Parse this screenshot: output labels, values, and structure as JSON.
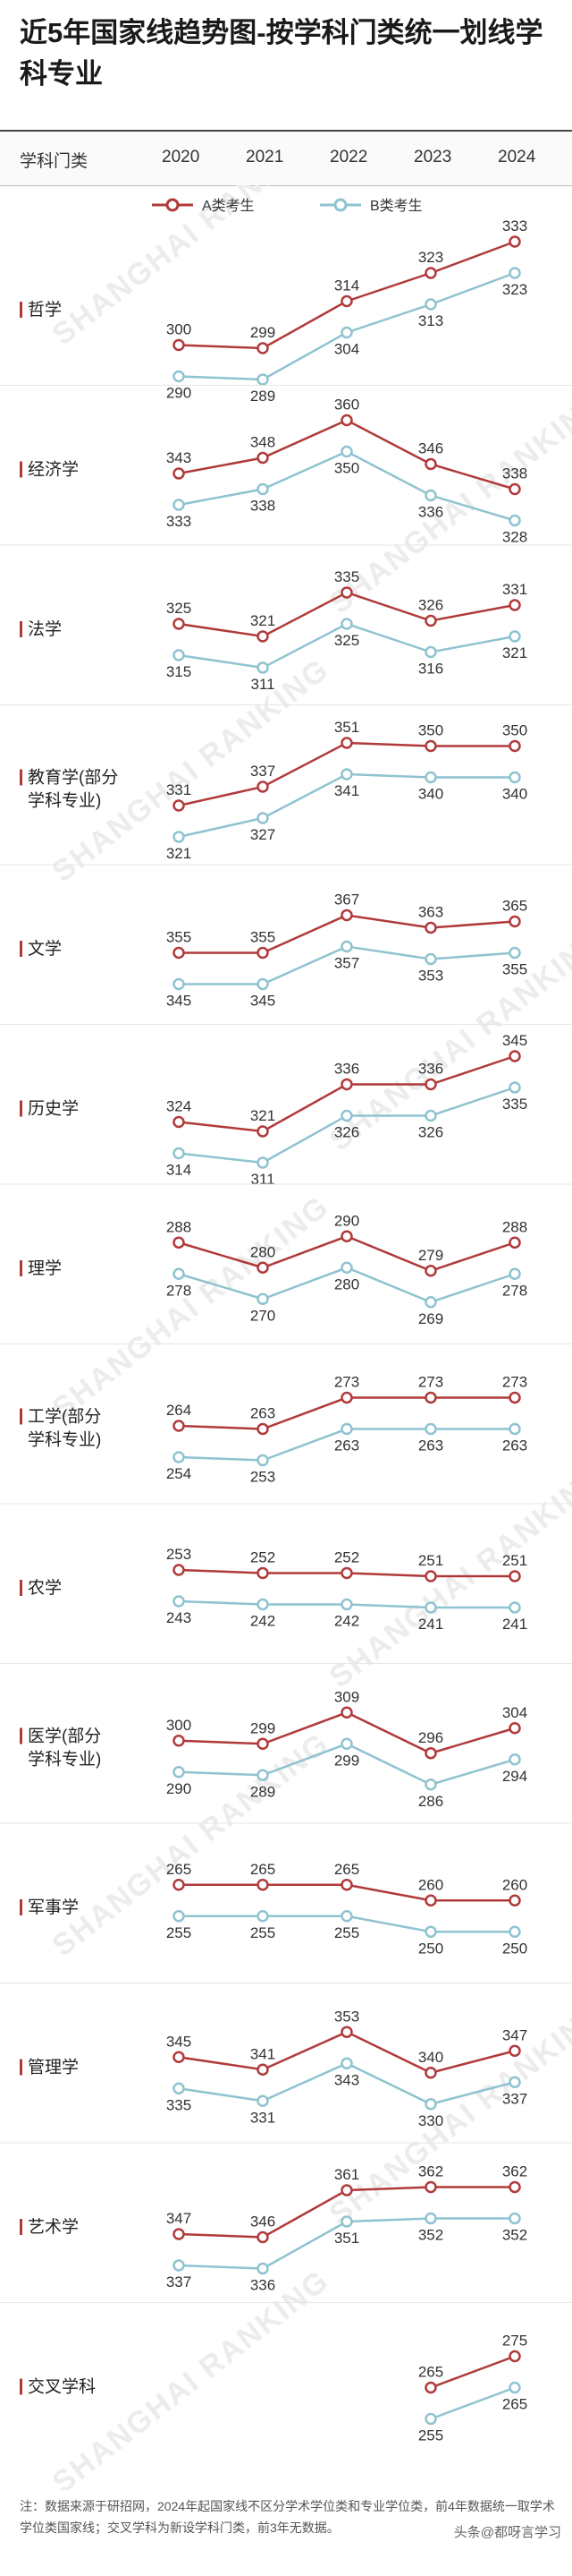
{
  "title": "近5年国家线趋势图-按学科门类统一划线学科专业",
  "header": {
    "category_label": "学科门类",
    "years": [
      "2020",
      "2021",
      "2022",
      "2023",
      "2024"
    ]
  },
  "legend": {
    "a_label": "A类考生",
    "b_label": "B类考生"
  },
  "colors": {
    "a_line": "#b03a3a",
    "b_line": "#8fc3cf"
  },
  "watermark": "SHANGHAI RANKING",
  "chart_data": {
    "type": "line",
    "x": [
      "2020",
      "2021",
      "2022",
      "2023",
      "2024"
    ],
    "series_names": [
      "A类考生",
      "B类考生"
    ],
    "panels": [
      {
        "label": [
          "哲学"
        ],
        "a": [
          300,
          299,
          314,
          323,
          333
        ],
        "b": [
          290,
          289,
          304,
          313,
          323
        ]
      },
      {
        "label": [
          "经济学"
        ],
        "a": [
          343,
          348,
          360,
          346,
          338
        ],
        "b": [
          333,
          338,
          350,
          336,
          328
        ]
      },
      {
        "label": [
          "法学"
        ],
        "a": [
          325,
          321,
          335,
          326,
          331
        ],
        "b": [
          315,
          311,
          325,
          316,
          321
        ]
      },
      {
        "label": [
          "教育学(部分",
          "学科专业)"
        ],
        "a": [
          331,
          337,
          351,
          350,
          350
        ],
        "b": [
          321,
          327,
          341,
          340,
          340
        ]
      },
      {
        "label": [
          "文学"
        ],
        "a": [
          355,
          355,
          367,
          363,
          365
        ],
        "b": [
          345,
          345,
          357,
          353,
          355
        ]
      },
      {
        "label": [
          "历史学"
        ],
        "a": [
          324,
          321,
          336,
          336,
          345
        ],
        "b": [
          314,
          311,
          326,
          326,
          335
        ]
      },
      {
        "label": [
          "理学"
        ],
        "a": [
          288,
          280,
          290,
          279,
          288
        ],
        "b": [
          278,
          270,
          280,
          269,
          278
        ]
      },
      {
        "label": [
          "工学(部分",
          "学科专业)"
        ],
        "a": [
          264,
          263,
          273,
          273,
          273
        ],
        "b": [
          254,
          253,
          263,
          263,
          263
        ]
      },
      {
        "label": [
          "农学"
        ],
        "a": [
          253,
          252,
          252,
          251,
          251
        ],
        "b": [
          243,
          242,
          242,
          241,
          241
        ]
      },
      {
        "label": [
          "医学(部分",
          "学科专业)"
        ],
        "a": [
          300,
          299,
          309,
          296,
          304
        ],
        "b": [
          290,
          289,
          299,
          286,
          294
        ]
      },
      {
        "label": [
          "军事学"
        ],
        "a": [
          265,
          265,
          265,
          260,
          260
        ],
        "b": [
          255,
          255,
          255,
          250,
          250
        ]
      },
      {
        "label": [
          "管理学"
        ],
        "a": [
          345,
          341,
          353,
          340,
          347
        ],
        "b": [
          335,
          331,
          343,
          330,
          337
        ]
      },
      {
        "label": [
          "艺术学"
        ],
        "a": [
          347,
          346,
          361,
          362,
          362
        ],
        "b": [
          337,
          336,
          351,
          352,
          352
        ]
      },
      {
        "label": [
          "交叉学科"
        ],
        "a": [
          null,
          null,
          null,
          265,
          275
        ],
        "b": [
          null,
          null,
          null,
          255,
          265
        ]
      }
    ]
  },
  "footer": {
    "note": "注：数据来源于研招网，2024年起国家线不区分学术学位类和专业学位类，前4年数据统一取学术学位类国家线；交叉学科为新设学科门类，前3年无数据。",
    "source_tag": "头条@都呀言学习"
  }
}
